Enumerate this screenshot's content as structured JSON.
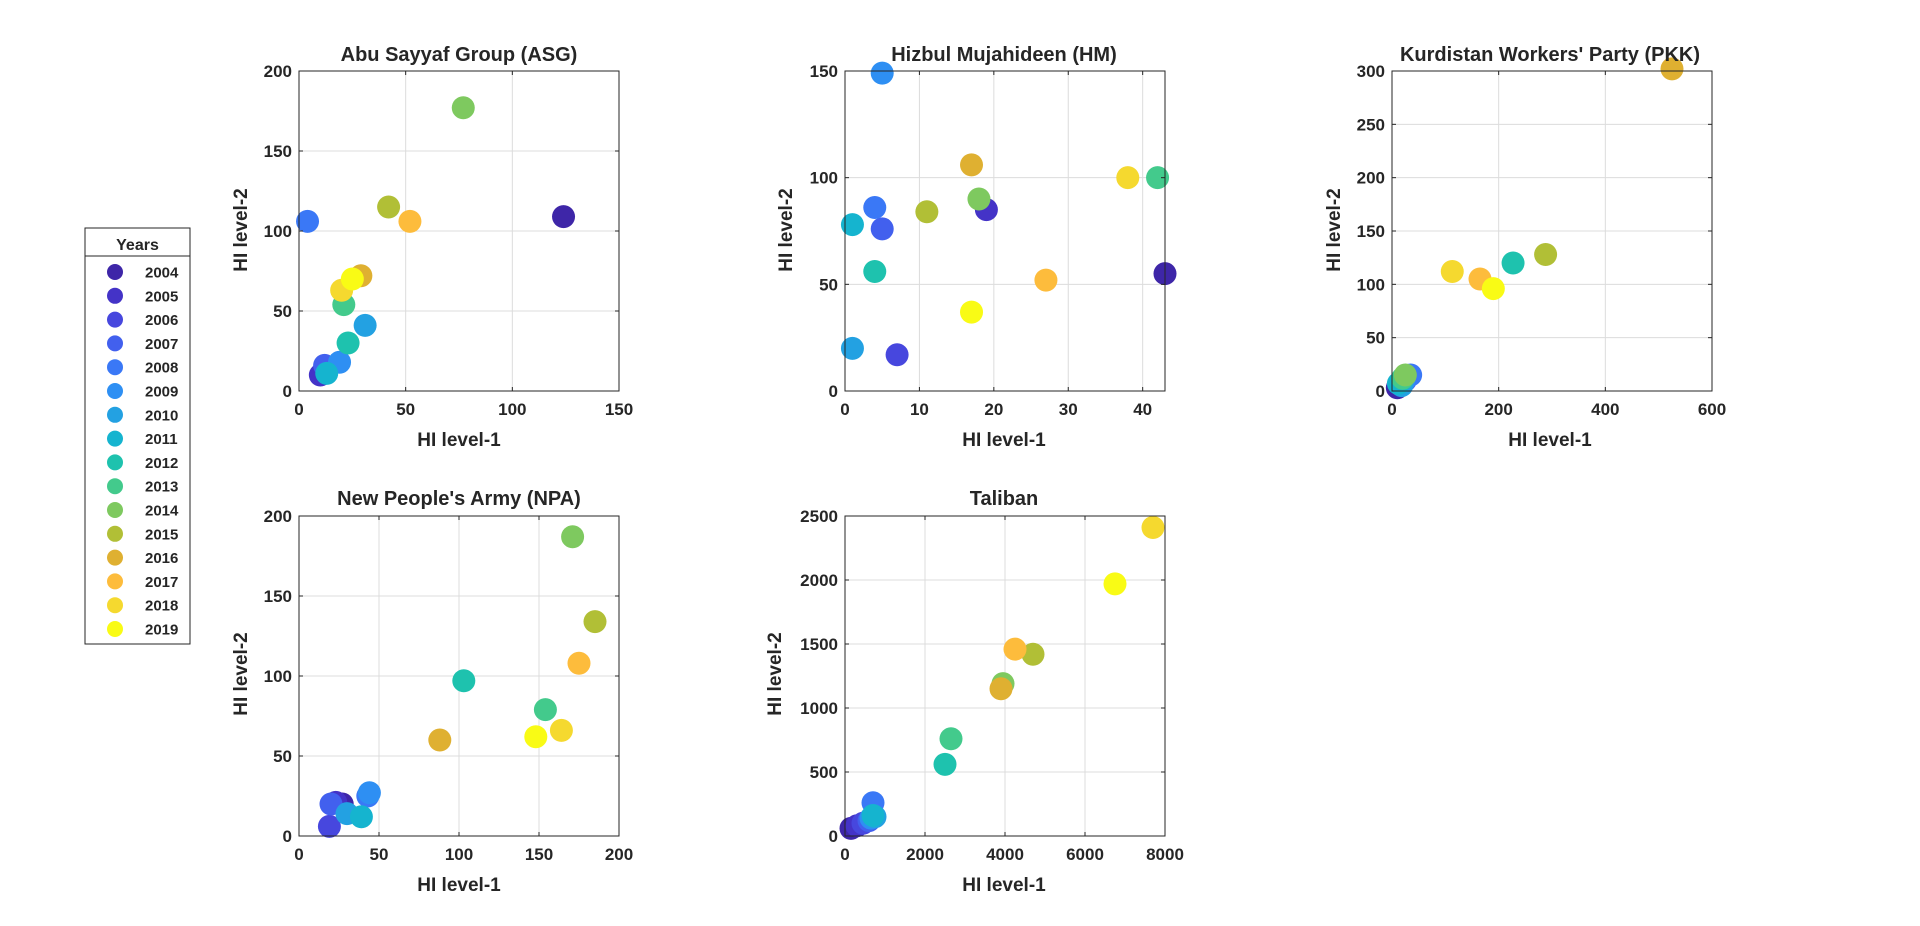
{
  "years_legend": {
    "title": "Years",
    "entries": [
      {
        "year": "2004",
        "color": "#3e26a8"
      },
      {
        "year": "2005",
        "color": "#4433c7"
      },
      {
        "year": "2006",
        "color": "#4747de"
      },
      {
        "year": "2007",
        "color": "#4260ee"
      },
      {
        "year": "2008",
        "color": "#3a78f6"
      },
      {
        "year": "2009",
        "color": "#2e8ff3"
      },
      {
        "year": "2010",
        "color": "#23a1e2"
      },
      {
        "year": "2011",
        "color": "#15b4cf"
      },
      {
        "year": "2012",
        "color": "#1ec2ae"
      },
      {
        "year": "2013",
        "color": "#43ca8c"
      },
      {
        "year": "2014",
        "color": "#7ec95f"
      },
      {
        "year": "2015",
        "color": "#b1bf36"
      },
      {
        "year": "2016",
        "color": "#dfb031"
      },
      {
        "year": "2017",
        "color": "#fdbc3c"
      },
      {
        "year": "2018",
        "color": "#f5d92f"
      },
      {
        "year": "2019",
        "color": "#f9fb15"
      }
    ]
  },
  "chart_data": [
    {
      "type": "scatter",
      "title": "Abu Sayyaf Group (ASG)",
      "xlabel": "HI level-1",
      "ylabel": "HI level-2",
      "xlim": [
        0,
        150
      ],
      "ylim": [
        0,
        200
      ],
      "xticks": [
        "0",
        "50",
        "100",
        "150"
      ],
      "yticks": [
        "0",
        "50",
        "100",
        "150",
        "200"
      ],
      "grid": true,
      "points": [
        {
          "year": "2004",
          "x": 124,
          "y": 109
        },
        {
          "year": "2005",
          "x": 10,
          "y": 10
        },
        {
          "year": "2006",
          "x": 13,
          "y": 14
        },
        {
          "year": "2007",
          "x": 12,
          "y": 16
        },
        {
          "year": "2008",
          "x": 4,
          "y": 106
        },
        {
          "year": "2009",
          "x": 19,
          "y": 18
        },
        {
          "year": "2010",
          "x": 31,
          "y": 41
        },
        {
          "year": "2011",
          "x": 13,
          "y": 11
        },
        {
          "year": "2012",
          "x": 23,
          "y": 30
        },
        {
          "year": "2013",
          "x": 21,
          "y": 54
        },
        {
          "year": "2014",
          "x": 77,
          "y": 177
        },
        {
          "year": "2015",
          "x": 42,
          "y": 115
        },
        {
          "year": "2016",
          "x": 29,
          "y": 72
        },
        {
          "year": "2017",
          "x": 52,
          "y": 106
        },
        {
          "year": "2018",
          "x": 20,
          "y": 63
        },
        {
          "year": "2019",
          "x": 25,
          "y": 70
        }
      ]
    },
    {
      "type": "scatter",
      "title": "Hizbul Mujahideen (HM)",
      "xlabel": "HI level-1",
      "ylabel": "HI level-2",
      "xlim": [
        0,
        43
      ],
      "ylim": [
        0,
        150
      ],
      "xticks": [
        "0",
        "10",
        "20",
        "30",
        "40"
      ],
      "yticks": [
        "0",
        "50",
        "100",
        "150"
      ],
      "grid": true,
      "points": [
        {
          "year": "2004",
          "x": 43,
          "y": 55
        },
        {
          "year": "2005",
          "x": 19,
          "y": 85
        },
        {
          "year": "2006",
          "x": 7,
          "y": 17
        },
        {
          "year": "2007",
          "x": 5,
          "y": 76
        },
        {
          "year": "2008",
          "x": 4,
          "y": 86
        },
        {
          "year": "2009",
          "x": 5,
          "y": 149
        },
        {
          "year": "2010",
          "x": 1,
          "y": 20
        },
        {
          "year": "2011",
          "x": 1,
          "y": 78
        },
        {
          "year": "2012",
          "x": 4,
          "y": 56
        },
        {
          "year": "2013",
          "x": 42,
          "y": 100
        },
        {
          "year": "2014",
          "x": 18,
          "y": 90
        },
        {
          "year": "2015",
          "x": 11,
          "y": 84
        },
        {
          "year": "2016",
          "x": 17,
          "y": 106
        },
        {
          "year": "2017",
          "x": 27,
          "y": 52
        },
        {
          "year": "2018",
          "x": 38,
          "y": 100
        },
        {
          "year": "2019",
          "x": 17,
          "y": 37
        }
      ]
    },
    {
      "type": "scatter",
      "title": "Kurdistan Workers' Party (PKK)",
      "xlabel": "HI level-1",
      "ylabel": "HI level-2",
      "xlim": [
        0,
        600
      ],
      "ylim": [
        0,
        300
      ],
      "xticks": [
        "0",
        "200",
        "400",
        "600"
      ],
      "yticks": [
        "0",
        "50",
        "100",
        "150",
        "200",
        "250",
        "300"
      ],
      "grid": true,
      "points": [
        {
          "year": "2004",
          "x": 10,
          "y": 3
        },
        {
          "year": "2005",
          "x": 15,
          "y": 6
        },
        {
          "year": "2006",
          "x": 20,
          "y": 8
        },
        {
          "year": "2007",
          "x": 25,
          "y": 10
        },
        {
          "year": "2008",
          "x": 35,
          "y": 15
        },
        {
          "year": "2009",
          "x": 22,
          "y": 9
        },
        {
          "year": "2010",
          "x": 18,
          "y": 5
        },
        {
          "year": "2011",
          "x": 12,
          "y": 7
        },
        {
          "year": "2012",
          "x": 227,
          "y": 120
        },
        {
          "year": "2013",
          "x": 20,
          "y": 12
        },
        {
          "year": "2014",
          "x": 25,
          "y": 15
        },
        {
          "year": "2015",
          "x": 288,
          "y": 128
        },
        {
          "year": "2016",
          "x": 525,
          "y": 302
        },
        {
          "year": "2017",
          "x": 165,
          "y": 105
        },
        {
          "year": "2018",
          "x": 113,
          "y": 112
        },
        {
          "year": "2019",
          "x": 190,
          "y": 96
        }
      ]
    },
    {
      "type": "scatter",
      "title": "New People's Army (NPA)",
      "xlabel": "HI level-1",
      "ylabel": "HI level-2",
      "xlim": [
        0,
        200
      ],
      "ylim": [
        0,
        200
      ],
      "xticks": [
        "0",
        "50",
        "100",
        "150",
        "200"
      ],
      "yticks": [
        "0",
        "50",
        "100",
        "150",
        "200"
      ],
      "grid": true,
      "points": [
        {
          "year": "2004",
          "x": 27,
          "y": 20
        },
        {
          "year": "2005",
          "x": 23,
          "y": 21
        },
        {
          "year": "2006",
          "x": 19,
          "y": 6
        },
        {
          "year": "2007",
          "x": 20,
          "y": 20
        },
        {
          "year": "2008",
          "x": 43,
          "y": 25
        },
        {
          "year": "2009",
          "x": 44,
          "y": 27
        },
        {
          "year": "2010",
          "x": 30,
          "y": 14
        },
        {
          "year": "2011",
          "x": 39,
          "y": 12
        },
        {
          "year": "2012",
          "x": 103,
          "y": 97
        },
        {
          "year": "2013",
          "x": 154,
          "y": 79
        },
        {
          "year": "2014",
          "x": 171,
          "y": 187
        },
        {
          "year": "2015",
          "x": 185,
          "y": 134
        },
        {
          "year": "2016",
          "x": 88,
          "y": 60
        },
        {
          "year": "2017",
          "x": 175,
          "y": 108
        },
        {
          "year": "2018",
          "x": 164,
          "y": 66
        },
        {
          "year": "2019",
          "x": 148,
          "y": 62
        }
      ]
    },
    {
      "type": "scatter",
      "title": "Taliban",
      "xlabel": "HI level-1",
      "ylabel": "HI level-2",
      "xlim": [
        0,
        8000
      ],
      "ylim": [
        0,
        2500
      ],
      "xticks": [
        "0",
        "2000",
        "4000",
        "6000",
        "8000"
      ],
      "yticks": [
        "0",
        "500",
        "1000",
        "1500",
        "2000",
        "2500"
      ],
      "grid": true,
      "points": [
        {
          "year": "2004",
          "x": 150,
          "y": 60
        },
        {
          "year": "2005",
          "x": 300,
          "y": 80
        },
        {
          "year": "2006",
          "x": 450,
          "y": 100
        },
        {
          "year": "2007",
          "x": 600,
          "y": 120
        },
        {
          "year": "2008",
          "x": 700,
          "y": 260
        },
        {
          "year": "2009",
          "x": 650,
          "y": 140
        },
        {
          "year": "2010",
          "x": 750,
          "y": 150
        },
        {
          "year": "2011",
          "x": 700,
          "y": 160
        },
        {
          "year": "2012",
          "x": 2500,
          "y": 560
        },
        {
          "year": "2013",
          "x": 2650,
          "y": 760
        },
        {
          "year": "2014",
          "x": 3950,
          "y": 1190
        },
        {
          "year": "2015",
          "x": 4700,
          "y": 1420
        },
        {
          "year": "2016",
          "x": 3900,
          "y": 1150
        },
        {
          "year": "2017",
          "x": 4250,
          "y": 1460
        },
        {
          "year": "2018",
          "x": 7700,
          "y": 2410
        },
        {
          "year": "2019",
          "x": 6750,
          "y": 1970
        }
      ]
    }
  ]
}
